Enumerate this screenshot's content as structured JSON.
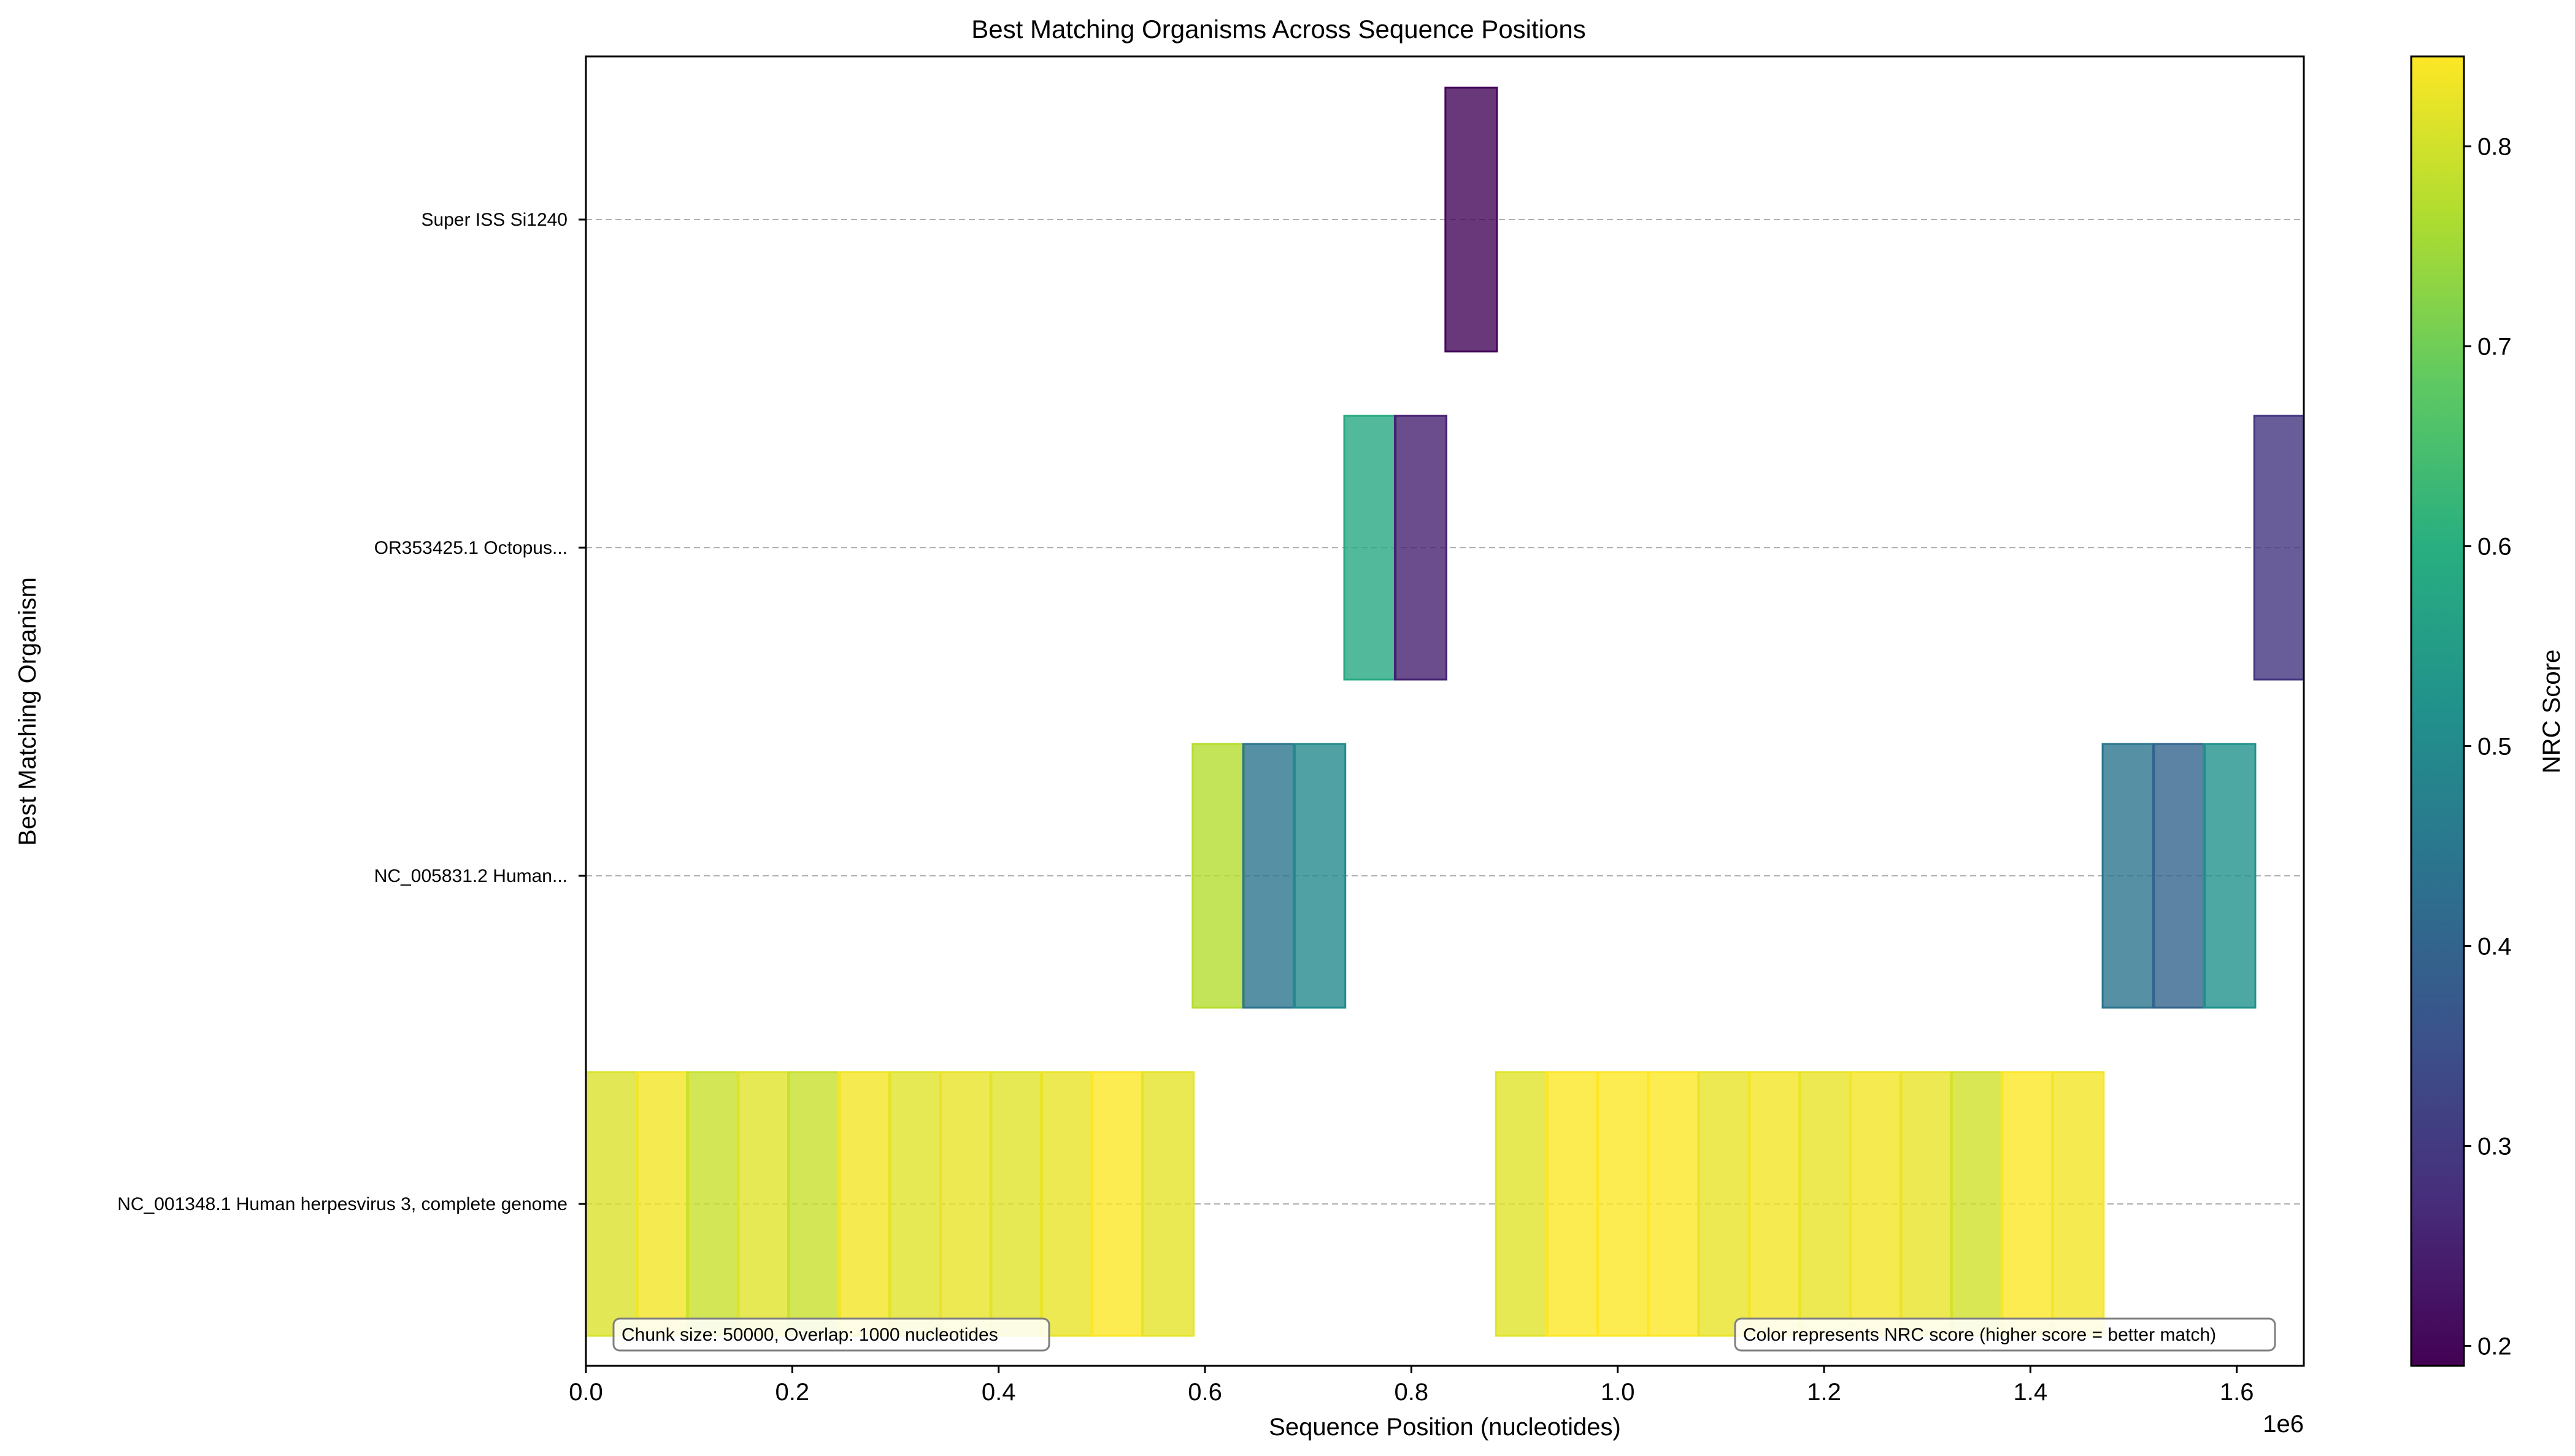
{
  "chart_data": {
    "type": "heatmap",
    "title": "Best Matching Organisms Across Sequence Positions",
    "xlabel": "Sequence Position (nucleotides)",
    "ylabel": "Best Matching Organism",
    "x_offset_label": "1e6",
    "xlim": [
      0,
      1665000
    ],
    "x_ticks": [
      0,
      200000,
      400000,
      600000,
      800000,
      1000000,
      1200000,
      1400000,
      1600000
    ],
    "x_tick_labels": [
      "0.0",
      "0.2",
      "0.4",
      "0.6",
      "0.8",
      "1.0",
      "1.2",
      "1.4",
      "1.6"
    ],
    "categories": [
      "NC_001348.1 Human herpesvirus 3, complete genome\u0001",
      "NC_005831.2 Human...",
      "OR353425.1 Octopus...",
      "Super ISS Si1240\u0001"
    ],
    "grid": "horizontal dashed",
    "colorbar": {
      "label": "NRC Score",
      "colormap": "viridis",
      "range": [
        0.19,
        0.845
      ],
      "ticks": [
        0.2,
        0.3,
        0.4,
        0.5,
        0.6,
        0.7,
        0.8
      ],
      "tick_labels": [
        "0.2",
        "0.3",
        "0.4",
        "0.5",
        "0.6",
        "0.7",
        "0.8"
      ]
    },
    "annotations": {
      "left": "Chunk size: 50000, Overlap: 1000 nucleotides",
      "right": "Color represents NRC score (higher score = better match)"
    },
    "chunks": [
      {
        "start": 0,
        "end": 50000,
        "category": 0,
        "score": 0.81
      },
      {
        "start": 49000,
        "end": 99000,
        "category": 0,
        "score": 0.835
      },
      {
        "start": 98000,
        "end": 148000,
        "category": 0,
        "score": 0.79
      },
      {
        "start": 147000,
        "end": 197000,
        "category": 0,
        "score": 0.815
      },
      {
        "start": 196000,
        "end": 246000,
        "category": 0,
        "score": 0.79
      },
      {
        "start": 245000,
        "end": 295000,
        "category": 0,
        "score": 0.835
      },
      {
        "start": 294000,
        "end": 344000,
        "category": 0,
        "score": 0.815
      },
      {
        "start": 343000,
        "end": 393000,
        "category": 0,
        "score": 0.825
      },
      {
        "start": 392000,
        "end": 442000,
        "category": 0,
        "score": 0.815
      },
      {
        "start": 441000,
        "end": 491000,
        "category": 0,
        "score": 0.825
      },
      {
        "start": 490000,
        "end": 540000,
        "category": 0,
        "score": 0.845
      },
      {
        "start": 539000,
        "end": 589000,
        "category": 0,
        "score": 0.82
      },
      {
        "start": 588000,
        "end": 638000,
        "category": 1,
        "score": 0.77
      },
      {
        "start": 637000,
        "end": 687000,
        "category": 1,
        "score": 0.44
      },
      {
        "start": 686000,
        "end": 736000,
        "category": 1,
        "score": 0.5
      },
      {
        "start": 735000,
        "end": 785000,
        "category": 2,
        "score": 0.585
      },
      {
        "start": 784000,
        "end": 834000,
        "category": 2,
        "score": 0.25
      },
      {
        "start": 833000,
        "end": 883000,
        "category": 3,
        "score": 0.2
      },
      {
        "start": 882000,
        "end": 932000,
        "category": 0,
        "score": 0.815
      },
      {
        "start": 931000,
        "end": 981000,
        "category": 0,
        "score": 0.845
      },
      {
        "start": 980000,
        "end": 1030000,
        "category": 0,
        "score": 0.845
      },
      {
        "start": 1029000,
        "end": 1079000,
        "category": 0,
        "score": 0.845
      },
      {
        "start": 1078000,
        "end": 1128000,
        "category": 0,
        "score": 0.825
      },
      {
        "start": 1127000,
        "end": 1177000,
        "category": 0,
        "score": 0.835
      },
      {
        "start": 1176000,
        "end": 1226000,
        "category": 0,
        "score": 0.825
      },
      {
        "start": 1225000,
        "end": 1275000,
        "category": 0,
        "score": 0.835
      },
      {
        "start": 1274000,
        "end": 1324000,
        "category": 0,
        "score": 0.825
      },
      {
        "start": 1323000,
        "end": 1373000,
        "category": 0,
        "score": 0.8
      },
      {
        "start": 1372000,
        "end": 1422000,
        "category": 0,
        "score": 0.845
      },
      {
        "start": 1421000,
        "end": 1471000,
        "category": 0,
        "score": 0.835
      },
      {
        "start": 1470000,
        "end": 1520000,
        "category": 1,
        "score": 0.44
      },
      {
        "start": 1519000,
        "end": 1569000,
        "category": 1,
        "score": 0.4
      },
      {
        "start": 1568000,
        "end": 1618000,
        "category": 1,
        "score": 0.52
      },
      {
        "start": 1617000,
        "end": 1667000,
        "category": 2,
        "score": 0.29
      }
    ]
  }
}
